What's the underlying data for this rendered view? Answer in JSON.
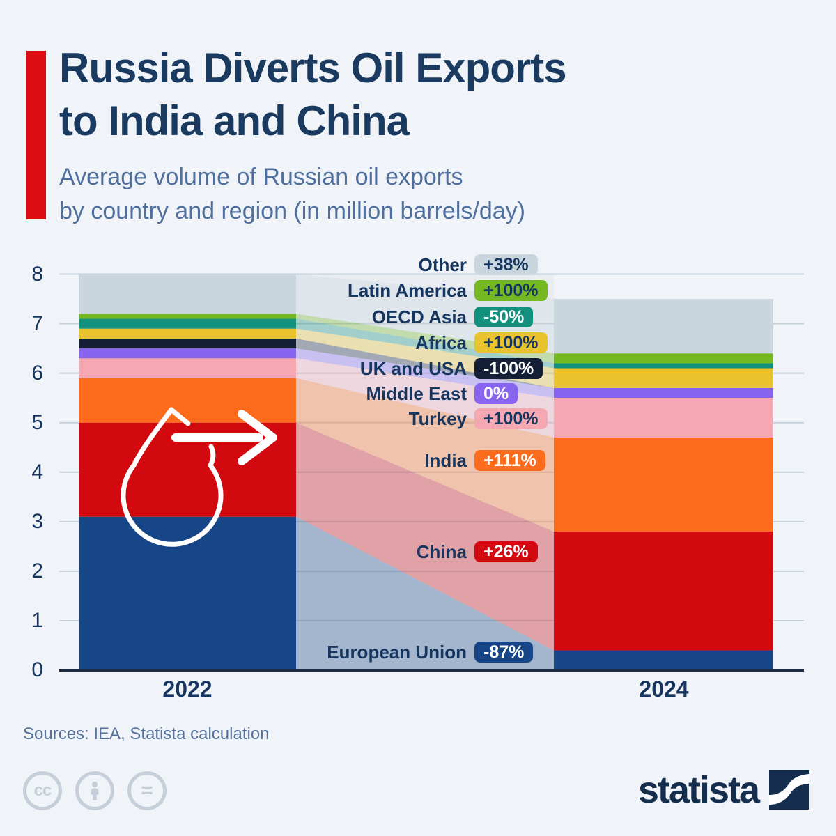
{
  "header": {
    "title_line1": "Russia Diverts Oil Exports",
    "title_line2": "to India and China",
    "subtitle_line1": "Average volume of Russian oil exports",
    "subtitle_line2": "by country and region (in million barrels/day)",
    "accent_color": "#dc0c12"
  },
  "chart_data": {
    "type": "bar",
    "subtype": "stacked-bars-with-alluvial-flows",
    "title": "Average volume of Russian oil exports by country and region (in million barrels/day)",
    "unit": "million barrels/day",
    "categories": [
      "2022",
      "2024"
    ],
    "ylim": [
      0,
      8
    ],
    "yticks": [
      0,
      1,
      2,
      3,
      4,
      5,
      6,
      7,
      8
    ],
    "grid": true,
    "legend_position": "center-flow-labels",
    "series": [
      {
        "name": "European Union",
        "values": [
          3.1,
          0.4
        ],
        "change": "-87%",
        "color": "#164687",
        "badge_text_color": "#ffffff"
      },
      {
        "name": "China",
        "values": [
          1.9,
          2.4
        ],
        "change": "+26%",
        "color": "#d20a10",
        "badge_text_color": "#ffffff"
      },
      {
        "name": "India",
        "values": [
          0.9,
          1.9
        ],
        "change": "+111%",
        "color": "#fd6c1d",
        "badge_text_color": "#ffffff"
      },
      {
        "name": "Turkey",
        "values": [
          0.4,
          0.8
        ],
        "change": "+100%",
        "color": "#f5a8b2",
        "badge_text_color": "#17365f"
      },
      {
        "name": "Middle East",
        "values": [
          0.2,
          0.2
        ],
        "change": "0%",
        "color": "#8765ee",
        "badge_text_color": "#ffffff"
      },
      {
        "name": "UK and USA",
        "values": [
          0.2,
          0.0
        ],
        "change": "-100%",
        "color": "#161f38",
        "badge_text_color": "#ffffff"
      },
      {
        "name": "Africa",
        "values": [
          0.2,
          0.4
        ],
        "change": "+100%",
        "color": "#e9c32e",
        "badge_text_color": "#17365f"
      },
      {
        "name": "OECD Asia",
        "values": [
          0.2,
          0.1
        ],
        "change": "-50%",
        "color": "#13917f",
        "badge_text_color": "#ffffff"
      },
      {
        "name": "Latin America",
        "values": [
          0.1,
          0.2
        ],
        "change": "+100%",
        "color": "#74b822",
        "badge_text_color": "#17365f"
      },
      {
        "name": "Other",
        "values": [
          0.8,
          1.1
        ],
        "change": "+38%",
        "color": "#c9d6dd",
        "badge_text_color": "#17365f"
      }
    ],
    "totals": {
      "2022": 8.0,
      "2024": 7.5
    }
  },
  "footer": {
    "sources": "Sources: IEA, Statista calculation",
    "brand": "statista",
    "license_icons": [
      "cc-icon",
      "by-person-icon",
      "nd-equals-icon"
    ]
  }
}
